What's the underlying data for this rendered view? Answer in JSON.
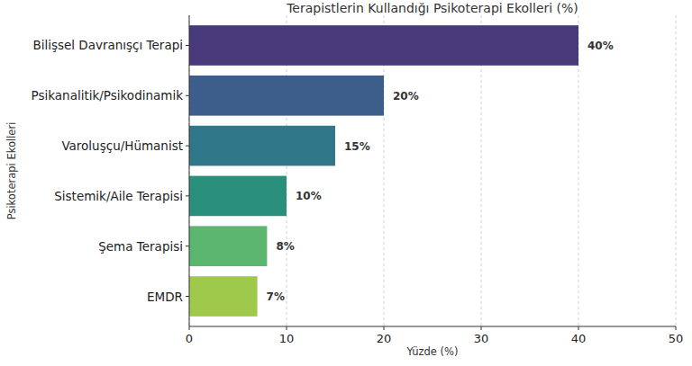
{
  "chart_data": {
    "type": "bar",
    "title": "Terapistlerin Kullandığı Psikoterapi Ekolleri (%)",
    "xlabel": "Yüzde (%)",
    "ylabel": "Psikoterapi Ekolleri",
    "orientation": "horizontal",
    "categories": [
      "Bilişsel Davranışçı Terapi",
      "Psikanalitik/Psikodinamik",
      "Varoluşçu/Hümanist",
      "Sistemik/Aile Terapisi",
      "Şema Terapisi",
      "EMDR"
    ],
    "values": [
      40,
      20,
      15,
      10,
      8,
      7
    ],
    "value_labels": [
      "40%",
      "20%",
      "15%",
      "10%",
      "8%",
      "7%"
    ],
    "colors": [
      "#48397a",
      "#3d5d8a",
      "#30778a",
      "#2a907c",
      "#5cb66f",
      "#9fc94b"
    ],
    "xlim": [
      0,
      50
    ],
    "xticks": [
      0,
      10,
      20,
      30,
      40,
      50
    ],
    "grid": true,
    "data_labels": true
  }
}
